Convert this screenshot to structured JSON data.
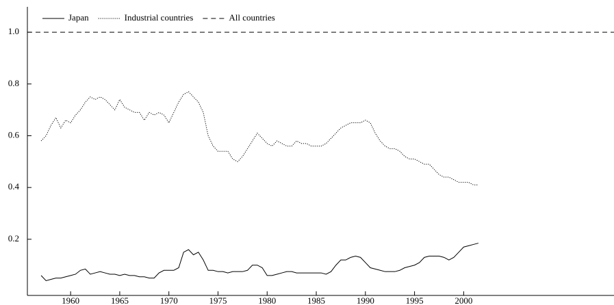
{
  "chart_data": {
    "type": "line",
    "xlim": [
      1955.6,
      2015.3
    ],
    "ylim": [
      -0.017,
      1.098
    ],
    "xticks": [
      1960,
      1965,
      1970,
      1975,
      1980,
      1985,
      1990,
      1995,
      2000
    ],
    "yticks": [
      0.2,
      0.4,
      0.6,
      0.8,
      {
        "value": 1,
        "label": "1.0"
      }
    ],
    "x": [
      1957,
      1957.5,
      1958,
      1958.5,
      1959,
      1959.5,
      1960,
      1960.5,
      1961,
      1961.5,
      1962,
      1962.5,
      1963,
      1963.5,
      1964,
      1964.5,
      1965,
      1965.5,
      1966,
      1966.5,
      1967,
      1967.5,
      1968,
      1968.5,
      1969,
      1969.5,
      1970,
      1970.5,
      1971,
      1971.5,
      1972,
      1972.5,
      1973,
      1973.5,
      1974,
      1974.5,
      1975,
      1975.5,
      1976,
      1976.5,
      1977,
      1977.5,
      1978,
      1978.5,
      1979,
      1979.5,
      1980,
      1980.5,
      1981,
      1981.5,
      1982,
      1982.5,
      1983,
      1983.5,
      1984,
      1984.5,
      1985,
      1985.5,
      1986,
      1986.5,
      1987,
      1987.5,
      1988,
      1988.5,
      1989,
      1989.5,
      1990,
      1990.5,
      1991,
      1991.5,
      1992,
      1992.5,
      1993,
      1993.5,
      1994,
      1994.5,
      1995,
      1995.5,
      1996,
      1996.5,
      1997,
      1997.5,
      1998,
      1998.5,
      1999,
      1999.5,
      2000,
      2000.5,
      2001,
      2001.5
    ],
    "series": [
      {
        "name": "Japan",
        "color": "#000000",
        "linestyle": "solid",
        "values": [
          0.06,
          0.04,
          0.045,
          0.05,
          0.05,
          0.055,
          0.06,
          0.065,
          0.08,
          0.085,
          0.065,
          0.07,
          0.075,
          0.07,
          0.065,
          0.065,
          0.06,
          0.065,
          0.06,
          0.06,
          0.055,
          0.055,
          0.05,
          0.05,
          0.07,
          0.08,
          0.08,
          0.08,
          0.09,
          0.15,
          0.16,
          0.14,
          0.15,
          0.12,
          0.08,
          0.08,
          0.075,
          0.075,
          0.07,
          0.075,
          0.075,
          0.075,
          0.08,
          0.1,
          0.1,
          0.09,
          0.06,
          0.06,
          0.065,
          0.07,
          0.075,
          0.075,
          0.07,
          0.07,
          0.07,
          0.07,
          0.07,
          0.07,
          0.065,
          0.075,
          0.1,
          0.12,
          0.12,
          0.13,
          0.135,
          0.13,
          0.11,
          0.09,
          0.085,
          0.08,
          0.075,
          0.075,
          0.075,
          0.08,
          0.09,
          0.095,
          0.1,
          0.11,
          0.13,
          0.135,
          0.135,
          0.135,
          0.13,
          0.12,
          0.13,
          0.15,
          0.17,
          0.175,
          0.18,
          0.185
        ]
      },
      {
        "name": "Industrial countries",
        "color": "#000000",
        "linestyle": "dotted",
        "values": [
          0.58,
          0.6,
          0.64,
          0.67,
          0.63,
          0.66,
          0.65,
          0.68,
          0.7,
          0.73,
          0.75,
          0.74,
          0.75,
          0.74,
          0.72,
          0.7,
          0.74,
          0.71,
          0.7,
          0.69,
          0.69,
          0.66,
          0.69,
          0.68,
          0.69,
          0.68,
          0.65,
          0.69,
          0.73,
          0.76,
          0.77,
          0.75,
          0.73,
          0.69,
          0.6,
          0.56,
          0.54,
          0.54,
          0.54,
          0.51,
          0.5,
          0.52,
          0.55,
          0.58,
          0.61,
          0.59,
          0.57,
          0.56,
          0.58,
          0.57,
          0.56,
          0.56,
          0.58,
          0.57,
          0.57,
          0.56,
          0.56,
          0.56,
          0.57,
          0.59,
          0.61,
          0.63,
          0.64,
          0.65,
          0.65,
          0.65,
          0.66,
          0.65,
          0.61,
          0.58,
          0.56,
          0.55,
          0.55,
          0.54,
          0.52,
          0.51,
          0.51,
          0.5,
          0.49,
          0.49,
          0.47,
          0.45,
          0.44,
          0.44,
          0.43,
          0.42,
          0.42,
          0.42,
          0.41,
          0.41
        ]
      },
      {
        "name": "All countries",
        "color": "#000000",
        "linestyle": "dashed",
        "x": [
          1955.6,
          2015.3
        ],
        "values": [
          1,
          1
        ]
      }
    ]
  }
}
